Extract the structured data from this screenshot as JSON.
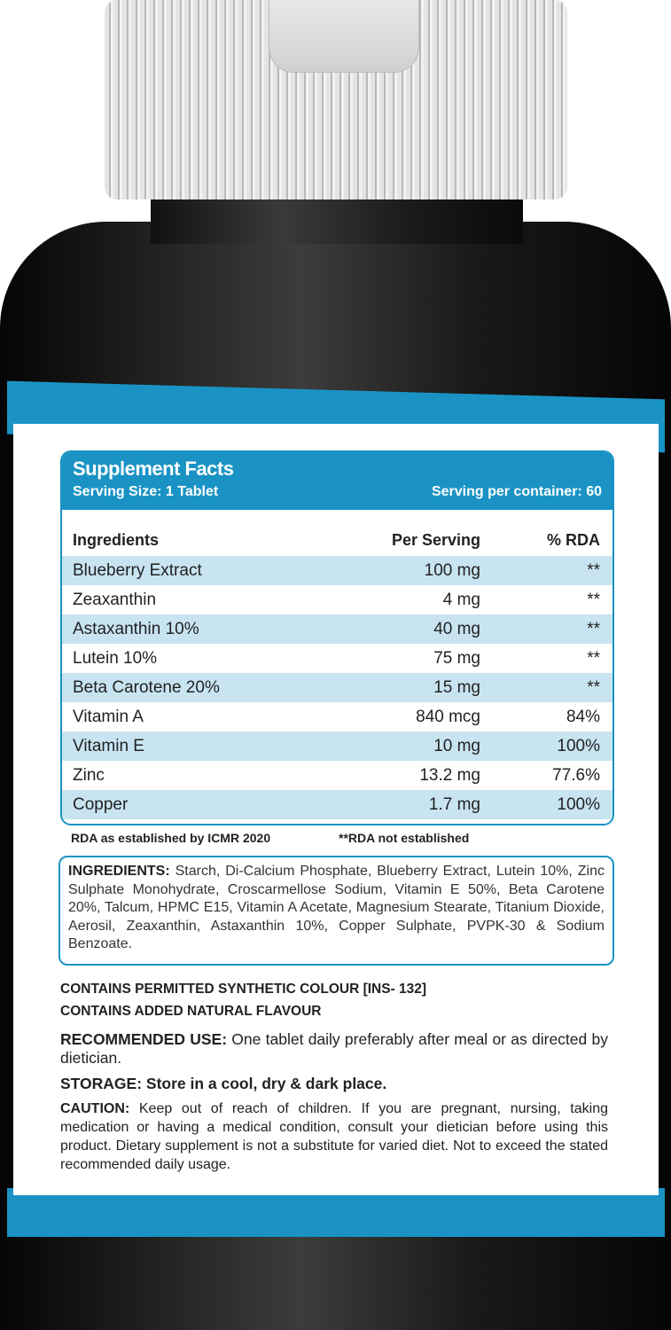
{
  "facts": {
    "title": "Supplement Facts",
    "serving_size": "Serving Size: 1 Tablet",
    "servings_per_container": "Serving per container: 60",
    "columns": [
      "Ingredients",
      "Per Serving",
      "% RDA"
    ],
    "rows": [
      {
        "name": "Blueberry Extract",
        "amount": "100 mg",
        "rda": "**"
      },
      {
        "name": "Zeaxanthin",
        "amount": "4 mg",
        "rda": "**"
      },
      {
        "name": "Astaxanthin 10%",
        "amount": "40 mg",
        "rda": "**"
      },
      {
        "name": "Lutein 10%",
        "amount": "75 mg",
        "rda": "**"
      },
      {
        "name": "Beta Carotene 20%",
        "amount": "15 mg",
        "rda": "**"
      },
      {
        "name": "Vitamin A",
        "amount": "840 mcg",
        "rda": "84%"
      },
      {
        "name": "Vitamin E",
        "amount": "10 mg",
        "rda": "100%"
      },
      {
        "name": "Zinc",
        "amount": "13.2 mg",
        "rda": "77.6%"
      },
      {
        "name": "Copper",
        "amount": "1.7 mg",
        "rda": "100%"
      }
    ]
  },
  "notes": {
    "rda_source": "RDA as established by ICMR 2020",
    "rda_na": "**RDA not established"
  },
  "ingredients": {
    "label": "INGREDIENTS:",
    "text": " Starch, Di-Calcium Phosphate, Blueberry Extract, Lutein 10%, Zinc Sulphate Monohydrate, Croscarmellose Sodium, Vitamin E 50%, Beta Carotene 20%, Talcum, HPMC E15, Vitamin A Acetate, Magnesium Stearate, Titanium Dioxide, Aerosil, Zeaxanthin, Astaxanthin 10%, Copper Sulphate, PVPK-30 & Sodium Benzoate."
  },
  "colour_note": "CONTAINS PERMITTED SYNTHETIC COLOUR [INS- 132]",
  "flavour_note": "CONTAINS ADDED NATURAL FLAVOUR",
  "recommended": {
    "label": "RECOMMENDED USE:",
    "text": " One tablet daily preferably after meal or as directed by dietician."
  },
  "storage": {
    "label": "STORAGE:",
    "text": " Store in a cool, dry & dark place."
  },
  "caution": {
    "label": "CAUTION:",
    "text": " Keep out of reach of children. If you are pregnant, nursing, taking medication or having a medical condition, consult your dietician before using this product.  Dietary supplement is not a substitute for varied diet. Not to exceed the stated recommended daily usage."
  },
  "colors": {
    "accent": "#1a93c4",
    "row_alt": "#c8e4f1",
    "bottle": "#1a1a1a"
  }
}
